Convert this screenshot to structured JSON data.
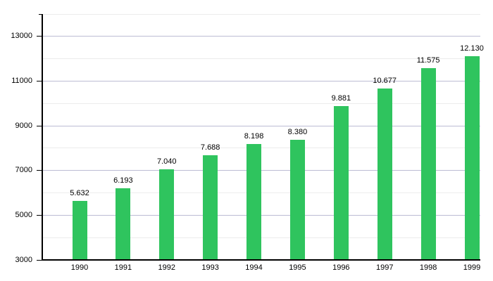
{
  "chart_data": {
    "type": "bar",
    "title": "",
    "xlabel": "",
    "ylabel": "",
    "categories": [
      "1990",
      "1991",
      "1992",
      "1993",
      "1994",
      "1995",
      "1996",
      "1997",
      "1998",
      "1999"
    ],
    "values": [
      5632,
      6193,
      7040,
      7688,
      8198,
      8380,
      9881,
      10677,
      11575,
      12130
    ],
    "bar_labels": [
      "5.632",
      "6.193",
      "7.040",
      "7.688",
      "8.198",
      "8.380",
      "9.881",
      "10.677",
      "11.575",
      "12.130"
    ],
    "ylim": [
      3000,
      14000
    ],
    "ytick_values": [
      3000,
      5000,
      7000,
      9000,
      11000,
      13000
    ],
    "ytick_labels": [
      "3000",
      "5000",
      "7000",
      "9000",
      "11000",
      "13000"
    ],
    "minor_grid_values": [
      4000,
      6000,
      8000,
      10000,
      12000,
      14000
    ],
    "grid": true,
    "legend": "none",
    "colors": {
      "bar": "#2FC45E",
      "major_grid": "#BCBCD4",
      "minor_grid": "#ECECEC",
      "axis": "#000000",
      "text": "#000000",
      "background": "#FFFFFF"
    }
  }
}
